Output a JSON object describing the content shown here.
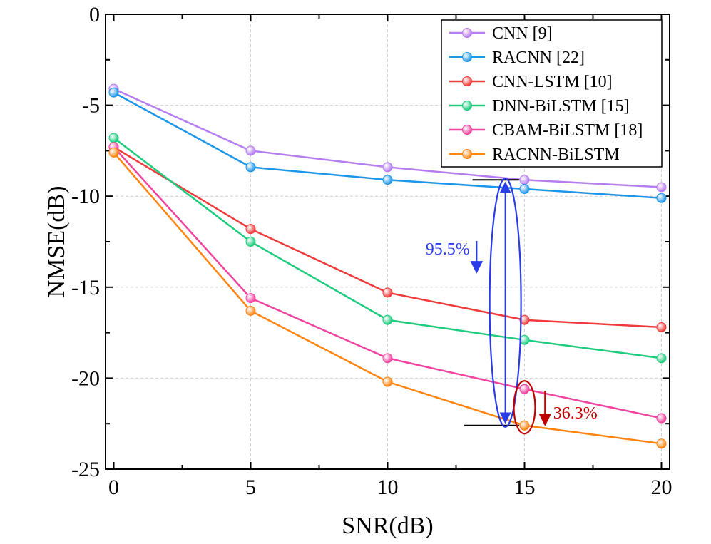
{
  "chart_data": {
    "type": "line",
    "title": "",
    "xlabel": "SNR(dB)",
    "ylabel": "NMSE(dB)",
    "xlim": [
      -0.3,
      20.3
    ],
    "ylim": [
      -25,
      0
    ],
    "x": [
      0,
      5,
      10,
      15,
      20
    ],
    "xticks": [
      0,
      5,
      10,
      15,
      20
    ],
    "xtick_labels": [
      "0",
      "5",
      "10",
      "15",
      "20"
    ],
    "yticks": [
      0,
      -5,
      -10,
      -15,
      -20,
      -25
    ],
    "ytick_labels": [
      "0",
      "-5",
      "-10",
      "-15",
      "-20",
      "-25"
    ],
    "grid": true,
    "legend_position": "top-right",
    "series": [
      {
        "name": "CNN [9]",
        "color": "#B57EF0",
        "values": [
          -4.1,
          -7.5,
          -8.4,
          -9.1,
          -9.5
        ]
      },
      {
        "name": "RACNN [22]",
        "color": "#1E96E8",
        "values": [
          -4.3,
          -8.4,
          -9.1,
          -9.6,
          -10.1
        ]
      },
      {
        "name": "CNN-LSTM [10]",
        "color": "#EE3B3B",
        "values": [
          -7.3,
          -11.8,
          -15.3,
          -16.8,
          -17.2
        ]
      },
      {
        "name": "DNN-BiLSTM [15]",
        "color": "#1FCB7E",
        "values": [
          -6.8,
          -12.5,
          -16.8,
          -17.9,
          -18.9
        ]
      },
      {
        "name": "CBAM-BiLSTM [18]",
        "color": "#F0449F",
        "values": [
          -7.3,
          -15.6,
          -18.9,
          -20.6,
          -22.2
        ]
      },
      {
        "name": "RACNN-BiLSTM",
        "color": "#FF8410",
        "values": [
          -7.6,
          -16.3,
          -20.2,
          -22.6,
          -23.6
        ]
      }
    ],
    "annotations": [
      {
        "text": "95.5%",
        "color": "#2A3BE8"
      },
      {
        "text": "36.3%",
        "color": "#C00000"
      }
    ]
  }
}
